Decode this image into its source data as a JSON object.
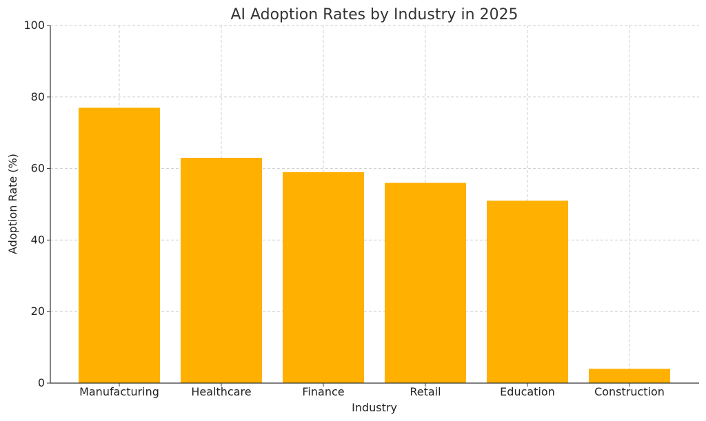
{
  "chart_data": {
    "type": "bar",
    "title": "AI Adoption Rates by Industry in 2025",
    "xlabel": "Industry",
    "ylabel": "Adoption Rate (%)",
    "categories": [
      "Manufacturing",
      "Healthcare",
      "Finance",
      "Retail",
      "Education",
      "Construction"
    ],
    "values": [
      77,
      63,
      59,
      56,
      51,
      4
    ],
    "ylim": [
      0,
      100
    ],
    "yticks": [
      0,
      20,
      40,
      60,
      80,
      100
    ],
    "grid": true,
    "colors": {
      "bar": "#FFB000"
    }
  }
}
